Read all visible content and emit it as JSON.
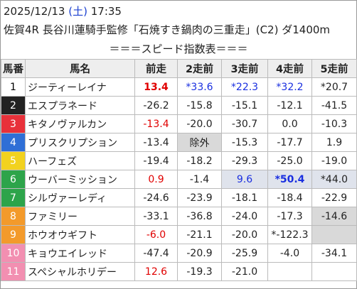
{
  "header": {
    "date": "2025/12/13",
    "weekday": "(土)",
    "time": "17:35",
    "race": "佐賀4R 長谷川蓮騎手監修「石焼すき鍋肉の三重走」(C2) ダ1400m",
    "subtitle": "＝＝＝スピード指数表＝＝＝"
  },
  "table": {
    "columns": [
      "馬番",
      "馬名",
      "前走",
      "2走前",
      "3走前",
      "4走前",
      "5走前"
    ],
    "rows": [
      {
        "no": "1",
        "name": "ジーティーレイナ",
        "frame_color": "#ffffff",
        "frame_text": "#000000",
        "cells": [
          "13.4",
          "*33.6",
          "*22.3",
          "*32.2",
          "*20.7"
        ],
        "styles": [
          "red bold",
          "blue",
          "blue",
          "blue",
          "plain"
        ]
      },
      {
        "no": "2",
        "name": "エスプラネード",
        "frame_color": "#222222",
        "frame_text": "#ffffff",
        "cells": [
          "-26.2",
          "-15.8",
          "-15.1",
          "-12.1",
          "-41.5"
        ],
        "styles": [
          "plain",
          "plain",
          "plain",
          "plain",
          "plain"
        ]
      },
      {
        "no": "3",
        "name": "キタノヴァルカン",
        "frame_color": "#e8313a",
        "frame_text": "#ffffff",
        "cells": [
          "-13.4",
          "-20.0",
          "-30.7",
          "0.0",
          "-10.3"
        ],
        "styles": [
          "red",
          "plain",
          "plain",
          "plain",
          "plain"
        ]
      },
      {
        "no": "4",
        "name": "プリスクリプション",
        "frame_color": "#2f6fd6",
        "frame_text": "#ffffff",
        "cells": [
          "-13.4",
          "除外",
          "-15.3",
          "-17.7",
          "1.9"
        ],
        "styles": [
          "plain",
          "gray",
          "plain",
          "plain",
          "plain"
        ]
      },
      {
        "no": "5",
        "name": "ハーフェズ",
        "frame_color": "#f2d21f",
        "frame_text": "#ffffff",
        "cells": [
          "-19.4",
          "-18.2",
          "-29.3",
          "-25.0",
          "-19.0"
        ],
        "styles": [
          "plain",
          "plain",
          "plain",
          "plain",
          "plain"
        ]
      },
      {
        "no": "6",
        "name": "ウーバーミッション",
        "frame_color": "#2da44a",
        "frame_text": "#ffffff",
        "cells": [
          "0.9",
          "-1.4",
          "9.6",
          "*50.4",
          "*44.0"
        ],
        "styles": [
          "red",
          "plain",
          "blue shade",
          "blue bold shade",
          "shade"
        ]
      },
      {
        "no": "7",
        "name": "シルヴァーレディ",
        "frame_color": "#2da44a",
        "frame_text": "#ffffff",
        "cells": [
          "-24.6",
          "-23.9",
          "-18.1",
          "-18.4",
          "-22.9"
        ],
        "styles": [
          "plain",
          "plain",
          "plain",
          "plain",
          "plain"
        ]
      },
      {
        "no": "8",
        "name": "ファミリー",
        "frame_color": "#f39a2b",
        "frame_text": "#ffffff",
        "cells": [
          "-33.1",
          "-36.8",
          "-24.0",
          "-17.3",
          "-14.6"
        ],
        "styles": [
          "plain",
          "plain",
          "plain",
          "plain",
          "gray"
        ]
      },
      {
        "no": "9",
        "name": "ホウオウギフト",
        "frame_color": "#f39a2b",
        "frame_text": "#ffffff",
        "cells": [
          "-6.0",
          "-21.1",
          "-20.0",
          "*-122.3",
          null
        ],
        "styles": [
          "red",
          "plain",
          "plain",
          "plain",
          "gray"
        ]
      },
      {
        "no": "10",
        "name": "キョウエイレッド",
        "frame_color": "#f28fb1",
        "frame_text": "#ffffff",
        "cells": [
          "-47.4",
          "-20.9",
          "-25.9",
          "-4.0",
          "-34.1"
        ],
        "styles": [
          "plain",
          "plain",
          "plain",
          "plain",
          "plain"
        ]
      },
      {
        "no": "11",
        "name": "スペシャルホリデー",
        "frame_color": "#f28fb1",
        "frame_text": "#ffffff",
        "cells": [
          "12.6",
          "-19.3",
          "-21.0",
          null,
          null
        ],
        "styles": [
          "red",
          "plain",
          "plain",
          "plain",
          "plain"
        ]
      }
    ]
  }
}
